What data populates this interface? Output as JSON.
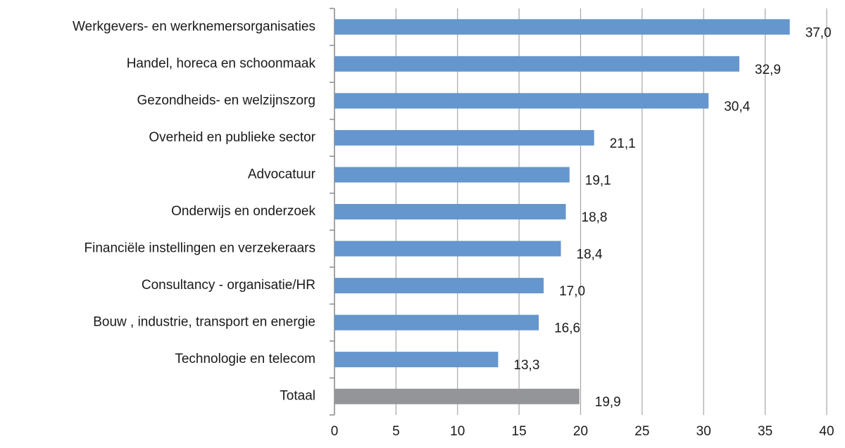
{
  "chart_data": {
    "type": "barh",
    "categories": [
      "Werkgevers- en werknemersorganisaties",
      "Handel, horeca en schoonmaak",
      "Gezondheids- en welzijnszorg",
      "Overheid en publieke sector",
      "Advocatuur",
      "Onderwijs en onderzoek",
      "Financiële instellingen en verzekeraars",
      "Consultancy - organisatie/HR",
      "Bouw , industrie, transport en energie",
      "Technologie en telecom",
      "Totaal"
    ],
    "values": [
      37.0,
      32.9,
      30.4,
      21.1,
      19.1,
      18.8,
      18.4,
      17.0,
      16.6,
      13.3,
      19.9
    ],
    "value_labels": [
      "37,0",
      "32,9",
      "30,4",
      "21,1",
      "19,1",
      "18,8",
      "18,4",
      "17,0",
      "16,6",
      "13,3",
      "19,9"
    ],
    "colors": [
      "#6596cd",
      "#6596cd",
      "#6596cd",
      "#6596cd",
      "#6596cd",
      "#6596cd",
      "#6596cd",
      "#6596cd",
      "#6596cd",
      "#6596cd",
      "#939598"
    ],
    "xlim": [
      0,
      40
    ],
    "xticks": [
      0,
      5,
      10,
      15,
      20,
      25,
      30,
      35,
      40
    ],
    "grid": true
  }
}
